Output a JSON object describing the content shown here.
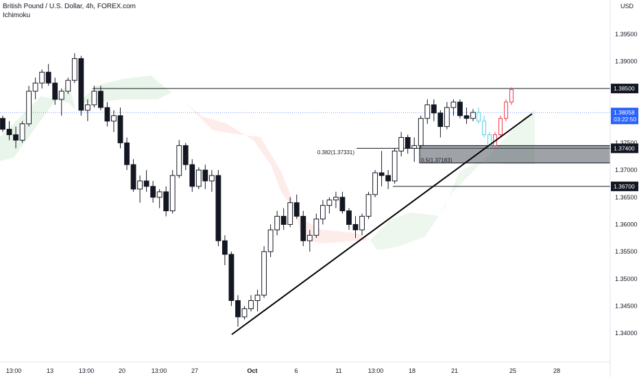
{
  "header": {
    "title": "British Pound / U.S. Dollar, 4h, FOREX.com",
    "indicator": "Ichimoku"
  },
  "price_axis": {
    "currency": "USD"
  },
  "chart_data": {
    "type": "candlestick",
    "symbol": "GBPUSD",
    "timeframe": "4h",
    "ylim": [
      1.3385,
      1.3985
    ],
    "y_ticks": [
      "1.39500",
      "1.39000",
      "1.38500",
      "1.38000",
      "1.37500",
      "1.37000",
      "1.36500",
      "1.36000",
      "1.35500",
      "1.35000",
      "1.34500",
      "1.34000"
    ],
    "x_ticks": [
      "13:00",
      "13",
      "13:00",
      "20",
      "13:00",
      "27",
      "Oct",
      "6",
      "11",
      "13:00",
      "18",
      "21",
      "25",
      "28"
    ],
    "price_labels": [
      {
        "label": "1.38500",
        "value": 1.385,
        "color": "#131722"
      },
      {
        "label": "1.37400",
        "value": 1.374,
        "color": "#131722"
      },
      {
        "label": "1.36700",
        "value": 1.367,
        "color": "#131722"
      }
    ],
    "last_price": {
      "value": 1.38058,
      "label": "1.38058",
      "countdown": "03:22:50",
      "color": "#2962ff"
    },
    "fib_levels": [
      {
        "label": "0.382(1.37331)",
        "value": 1.37331
      },
      {
        "label": "0.5(1.37183)",
        "value": 1.37183
      }
    ],
    "zone": {
      "top": 1.3745,
      "bottom": 1.3713
    },
    "candles": [
      [
        1.3795,
        1.38,
        1.377,
        1.3775
      ],
      [
        1.3775,
        1.379,
        1.3755,
        1.3765
      ],
      [
        1.3765,
        1.378,
        1.374,
        1.3755
      ],
      [
        1.3755,
        1.379,
        1.375,
        1.3785
      ],
      [
        1.3785,
        1.3855,
        1.378,
        1.3845
      ],
      [
        1.3845,
        1.387,
        1.383,
        1.386
      ],
      [
        1.386,
        1.3885,
        1.385,
        1.388
      ],
      [
        1.388,
        1.3895,
        1.3855,
        1.386
      ],
      [
        1.386,
        1.387,
        1.382,
        1.383
      ],
      [
        1.383,
        1.385,
        1.38,
        1.3845
      ],
      [
        1.3845,
        1.387,
        1.384,
        1.3865
      ],
      [
        1.3865,
        1.3915,
        1.386,
        1.3905
      ],
      [
        1.3905,
        1.391,
        1.38,
        1.381
      ],
      [
        1.381,
        1.383,
        1.379,
        1.382
      ],
      [
        1.382,
        1.3855,
        1.3815,
        1.3845
      ],
      [
        1.3845,
        1.3855,
        1.381,
        1.3815
      ],
      [
        1.3815,
        1.3825,
        1.378,
        1.379
      ],
      [
        1.379,
        1.381,
        1.377,
        1.38
      ],
      [
        1.38,
        1.3815,
        1.374,
        1.375
      ],
      [
        1.375,
        1.376,
        1.37,
        1.371
      ],
      [
        1.371,
        1.372,
        1.366,
        1.3665
      ],
      [
        1.3665,
        1.369,
        1.364,
        1.368
      ],
      [
        1.368,
        1.37,
        1.366,
        1.367
      ],
      [
        1.367,
        1.368,
        1.364,
        1.365
      ],
      [
        1.365,
        1.3665,
        1.363,
        1.366
      ],
      [
        1.366,
        1.367,
        1.3615,
        1.3625
      ],
      [
        1.3625,
        1.37,
        1.362,
        1.369
      ],
      [
        1.369,
        1.3755,
        1.3685,
        1.3745
      ],
      [
        1.3745,
        1.375,
        1.37,
        1.371
      ],
      [
        1.371,
        1.372,
        1.366,
        1.367
      ],
      [
        1.367,
        1.3705,
        1.3665,
        1.37
      ],
      [
        1.37,
        1.371,
        1.3665,
        1.368
      ],
      [
        1.368,
        1.37,
        1.366,
        1.369
      ],
      [
        1.369,
        1.37,
        1.356,
        1.357
      ],
      [
        1.357,
        1.358,
        1.3525,
        1.3545
      ],
      [
        1.3545,
        1.355,
        1.345,
        1.346
      ],
      [
        1.346,
        1.347,
        1.3412,
        1.343
      ],
      [
        1.343,
        1.345,
        1.3425,
        1.3445
      ],
      [
        1.3445,
        1.347,
        1.344,
        1.346
      ],
      [
        1.346,
        1.348,
        1.344,
        1.347
      ],
      [
        1.347,
        1.356,
        1.3465,
        1.355
      ],
      [
        1.355,
        1.36,
        1.354,
        1.359
      ],
      [
        1.359,
        1.3625,
        1.358,
        1.3615
      ],
      [
        1.3615,
        1.363,
        1.359,
        1.36
      ],
      [
        1.36,
        1.365,
        1.3595,
        1.364
      ],
      [
        1.364,
        1.3655,
        1.361,
        1.3615
      ],
      [
        1.3615,
        1.3625,
        1.356,
        1.357
      ],
      [
        1.357,
        1.359,
        1.355,
        1.358
      ],
      [
        1.358,
        1.362,
        1.3575,
        1.361
      ],
      [
        1.361,
        1.3645,
        1.36,
        1.3635
      ],
      [
        1.3635,
        1.365,
        1.362,
        1.3645
      ],
      [
        1.3645,
        1.366,
        1.363,
        1.365
      ],
      [
        1.365,
        1.366,
        1.362,
        1.3625
      ],
      [
        1.3625,
        1.363,
        1.359,
        1.36
      ],
      [
        1.36,
        1.3615,
        1.3575,
        1.359
      ],
      [
        1.359,
        1.362,
        1.358,
        1.3615
      ],
      [
        1.3615,
        1.366,
        1.361,
        1.3655
      ],
      [
        1.3655,
        1.37,
        1.365,
        1.3695
      ],
      [
        1.3695,
        1.3735,
        1.367,
        1.369
      ],
      [
        1.369,
        1.37,
        1.3665,
        1.368
      ],
      [
        1.368,
        1.374,
        1.3675,
        1.3735
      ],
      [
        1.3735,
        1.377,
        1.3725,
        1.376
      ],
      [
        1.376,
        1.3765,
        1.373,
        1.374
      ],
      [
        1.374,
        1.376,
        1.3715,
        1.3745
      ],
      [
        1.3745,
        1.38,
        1.374,
        1.3795
      ],
      [
        1.3795,
        1.383,
        1.3785,
        1.382
      ],
      [
        1.382,
        1.383,
        1.379,
        1.3805
      ],
      [
        1.3805,
        1.381,
        1.376,
        1.378
      ],
      [
        1.378,
        1.3825,
        1.3775,
        1.3815
      ],
      [
        1.3815,
        1.383,
        1.38,
        1.3825
      ],
      [
        1.3825,
        1.383,
        1.3795,
        1.38
      ],
      [
        1.38,
        1.3815,
        1.3785,
        1.3795
      ],
      [
        1.3795,
        1.3812,
        1.379,
        1.3806
      ]
    ],
    "projection": [
      [
        1.3806,
        1.3815,
        1.3785,
        1.379
      ],
      [
        1.379,
        1.38,
        1.376,
        1.3765
      ],
      [
        1.3765,
        1.377,
        1.374,
        1.3745
      ],
      [
        1.3745,
        1.377,
        1.3742,
        1.3765
      ],
      [
        1.3765,
        1.38,
        1.376,
        1.3795
      ],
      [
        1.3795,
        1.383,
        1.379,
        1.3825
      ],
      [
        1.3825,
        1.3852,
        1.382,
        1.3848
      ]
    ]
  }
}
